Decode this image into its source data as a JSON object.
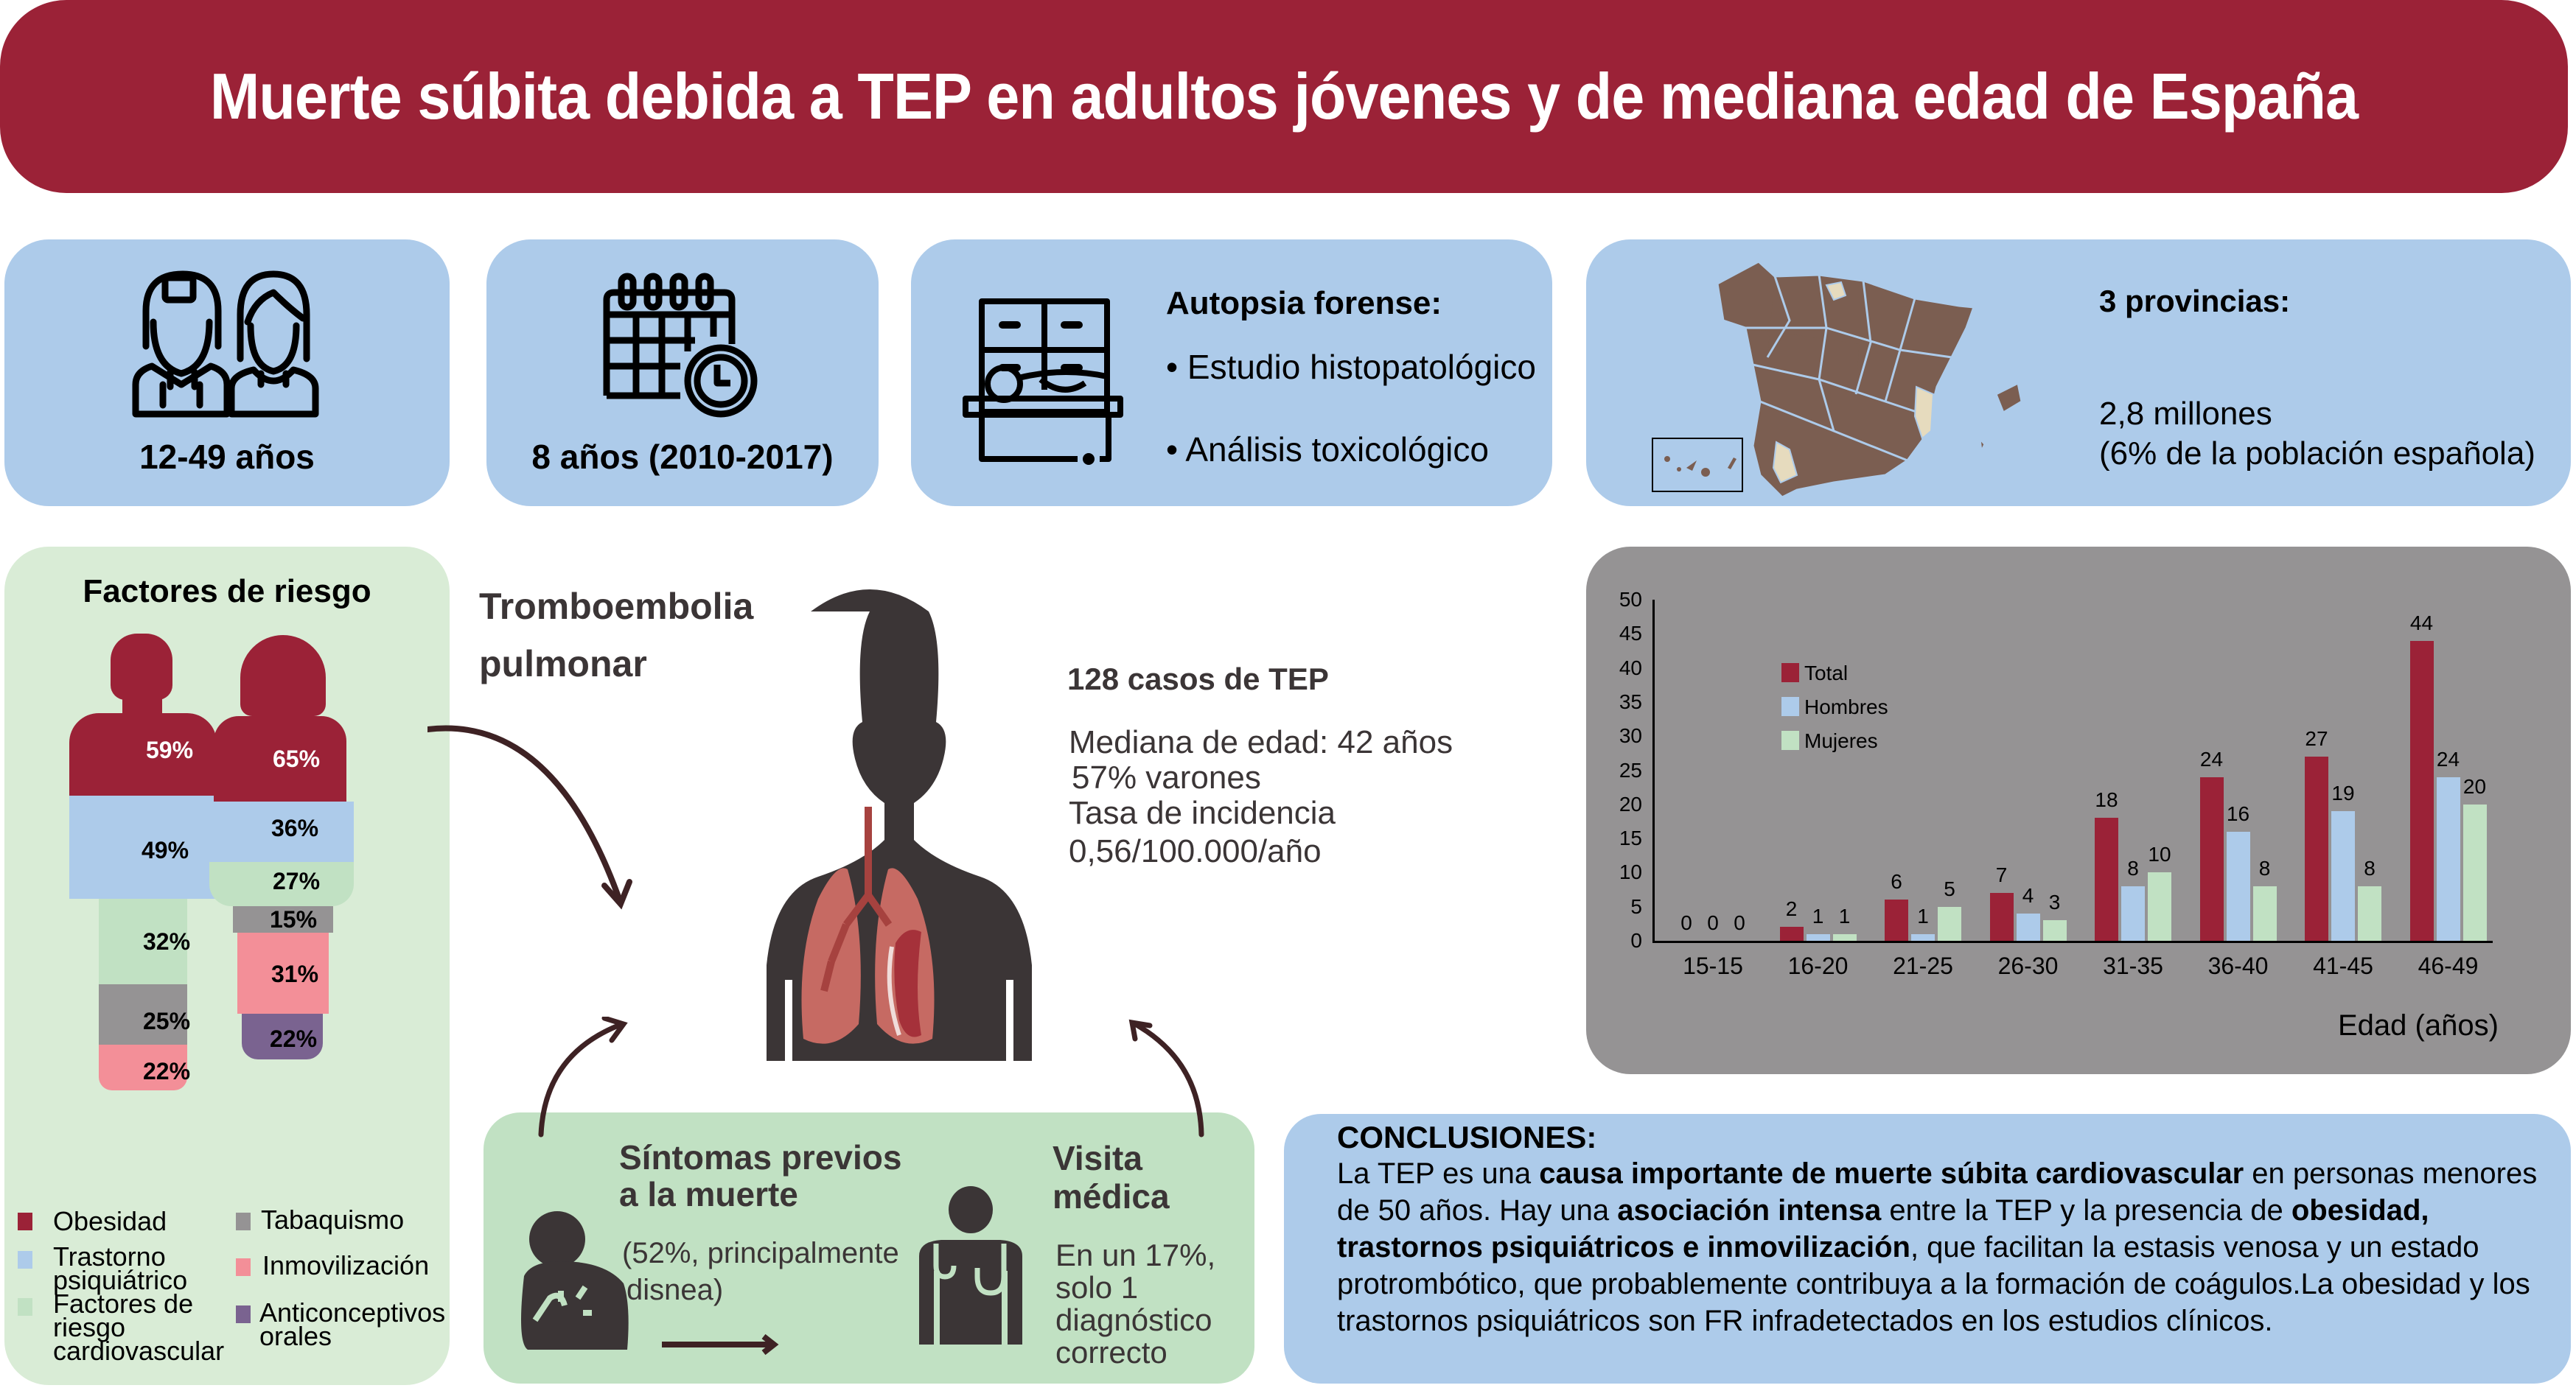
{
  "title": "Muerte súbita debida a TEP en adultos jóvenes y de mediana edad de España",
  "stats": [
    {
      "icon": "people-icon",
      "label": "12-49 años"
    },
    {
      "icon": "calendar-clock-icon",
      "label": "8 años (2010-2017)"
    }
  ],
  "autopsy": {
    "icon": "morgue-autopsy-icon",
    "heading": "Autopsia forense:",
    "items": [
      "• Estudio histopatológico",
      "• Análisis toxicológico"
    ]
  },
  "provinces": {
    "icon": "spain-map-icon",
    "heading": "3 provincias:",
    "line1": "2,8 millones",
    "line2": "(6% de la población española)"
  },
  "risk": {
    "heading": "Factores de riesgo",
    "male": [
      "59%",
      "49%",
      "32%",
      "25%",
      "22%"
    ],
    "female": [
      "65%",
      "36%",
      "27%",
      "15%",
      "31%",
      "22%"
    ],
    "legend": [
      {
        "label": "Obesidad",
        "color": "#9b2237"
      },
      {
        "label": "Trastorno psiquiátrico",
        "color": "#adcbea"
      },
      {
        "label": "Factores de riesgo cardiovascular",
        "color": "#c1e1c3"
      },
      {
        "label": "Tabaquismo",
        "color": "#959394"
      },
      {
        "label": "Inmovilización",
        "color": "#f38f98"
      },
      {
        "label": "Anticonceptivos orales",
        "color": "#7a6390"
      }
    ]
  },
  "tep": {
    "heading_line1": "Tromboembolia",
    "heading_line2": "pulmonar",
    "cases": "128 casos de TEP",
    "median": "Mediana de edad: 42 años",
    "male_pct": "57% varones",
    "incidence_label": "Tasa de incidencia",
    "incidence_value": "0,56/100.000/año"
  },
  "symptoms": {
    "heading_line1": "Síntomas previos",
    "heading_line2": "a la muerte",
    "detail_line1": "(52%, principalmente",
    "detail_line2": "disnea)",
    "visit_line1": "Visita",
    "visit_line2": "médica",
    "visit_detail": [
      "En un 17%,",
      "solo 1",
      "diagnóstico",
      "correcto"
    ]
  },
  "chart_data": {
    "type": "bar",
    "title": "",
    "xlabel": "Edad (años)",
    "ylabel": "",
    "ylim": [
      0,
      50
    ],
    "yticks": [
      0,
      5,
      10,
      15,
      20,
      25,
      30,
      35,
      40,
      45,
      50
    ],
    "categories": [
      "15-15",
      "16-20",
      "21-25",
      "26-30",
      "31-35",
      "36-40",
      "41-45",
      "46-49"
    ],
    "series": [
      {
        "name": "Total",
        "color": "#9b2237",
        "values": [
          0,
          2,
          6,
          7,
          18,
          24,
          27,
          44
        ]
      },
      {
        "name": "Hombres",
        "color": "#adcbea",
        "values": [
          0,
          1,
          1,
          4,
          8,
          16,
          19,
          24
        ]
      },
      {
        "name": "Mujeres",
        "color": "#c1e1c3",
        "values": [
          0,
          1,
          5,
          3,
          10,
          8,
          8,
          20
        ]
      }
    ],
    "legend_position": "upper-left",
    "grid": false
  },
  "conclusions": {
    "heading": "CONCLUSIONES:",
    "p1_a": "La TEP es una ",
    "p1_b": "causa importante de muerte súbita cardiovascular",
    "p1_c": " en personas menores de 50 años. Hay una ",
    "p1_d": "asociación intensa",
    "p1_e": " entre la TEP y la presencia de ",
    "p1_f": "obesidad, trastornos psiquiátricos e inmovilización",
    "p1_g": ", que facilitan la estasis venosa y un estado protrombótico, que probablemente contribuya a la formación de coágulos.La obesidad y los trastornos psiquiátricos son FR infradetectados en los estudios clínicos."
  },
  "colors": {
    "brand": "#9b2237",
    "blue_panel": "#adcbea",
    "green_panel": "#d9ecd6",
    "gray_panel": "#959394",
    "arrow": "#3e2224"
  }
}
